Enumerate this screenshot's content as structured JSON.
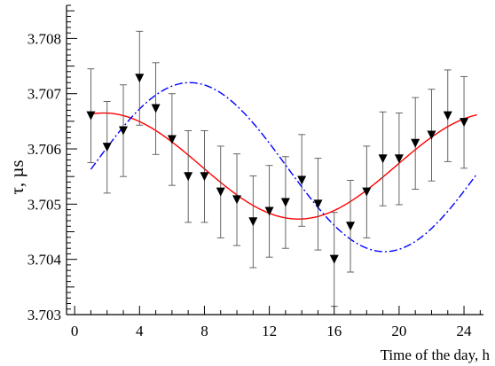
{
  "chart_data": {
    "type": "scatter",
    "title": "",
    "xlabel": "Time of the day, h",
    "ylabel": "τ, µs",
    "xlim": [
      -0.5,
      25.2
    ],
    "ylim": [
      3.703,
      3.7086
    ],
    "xticks": [
      0,
      4,
      8,
      12,
      16,
      20,
      24
    ],
    "xtick_labels": [
      "0",
      "4",
      "8",
      "12",
      "16",
      "20",
      "24"
    ],
    "yticks": [
      3.703,
      3.704,
      3.705,
      3.706,
      3.707,
      3.708
    ],
    "ytick_labels": [
      "3.703",
      "3.704",
      "3.705",
      "3.706",
      "3.707",
      "3.708"
    ],
    "grid": false,
    "series": [
      {
        "kind": "points_with_error_bars",
        "marker": "triangle-down",
        "color": "#000000",
        "points": [
          {
            "x": 1,
            "y": 3.7066,
            "err": 0.00085
          },
          {
            "x": 2,
            "y": 3.70603,
            "err": 0.00083
          },
          {
            "x": 3,
            "y": 3.70633,
            "err": 0.00083
          },
          {
            "x": 4,
            "y": 3.70728,
            "err": 0.00085
          },
          {
            "x": 5,
            "y": 3.70673,
            "err": 0.00083
          },
          {
            "x": 6,
            "y": 3.70617,
            "err": 0.00083
          },
          {
            "x": 7,
            "y": 3.7055,
            "err": 0.00083
          },
          {
            "x": 8,
            "y": 3.7055,
            "err": 0.00083
          },
          {
            "x": 9,
            "y": 3.70522,
            "err": 0.00083
          },
          {
            "x": 10,
            "y": 3.70508,
            "err": 0.00083
          },
          {
            "x": 11,
            "y": 3.70468,
            "err": 0.00083
          },
          {
            "x": 12,
            "y": 3.70487,
            "err": 0.00083
          },
          {
            "x": 13,
            "y": 3.70503,
            "err": 0.00083
          },
          {
            "x": 14,
            "y": 3.70543,
            "err": 0.00083
          },
          {
            "x": 15,
            "y": 3.705,
            "err": 0.00083
          },
          {
            "x": 16,
            "y": 3.704,
            "err": 0.00085
          },
          {
            "x": 17,
            "y": 3.7046,
            "err": 0.00083
          },
          {
            "x": 18,
            "y": 3.70522,
            "err": 0.00083
          },
          {
            "x": 19,
            "y": 3.70582,
            "err": 0.00085
          },
          {
            "x": 20,
            "y": 3.70582,
            "err": 0.00083
          },
          {
            "x": 21,
            "y": 3.7061,
            "err": 0.00083
          },
          {
            "x": 22,
            "y": 3.70625,
            "err": 0.00083
          },
          {
            "x": 23,
            "y": 3.7066,
            "err": 0.00083
          },
          {
            "x": 24,
            "y": 3.70648,
            "err": 0.00083
          }
        ]
      },
      {
        "kind": "curve",
        "style": "solid",
        "color": "#ff0000",
        "x_range": [
          1,
          24.8
        ],
        "mean": 3.70569,
        "amplitude": 0.00096,
        "period": 24,
        "phase_peak": 1.8
      },
      {
        "kind": "curve",
        "style": "dash-dot",
        "color": "#0000ff",
        "x_range": [
          1,
          24.8
        ],
        "mean": 3.70567,
        "amplitude": 0.00153,
        "period": 24,
        "phase_peak": 7.1
      }
    ]
  }
}
